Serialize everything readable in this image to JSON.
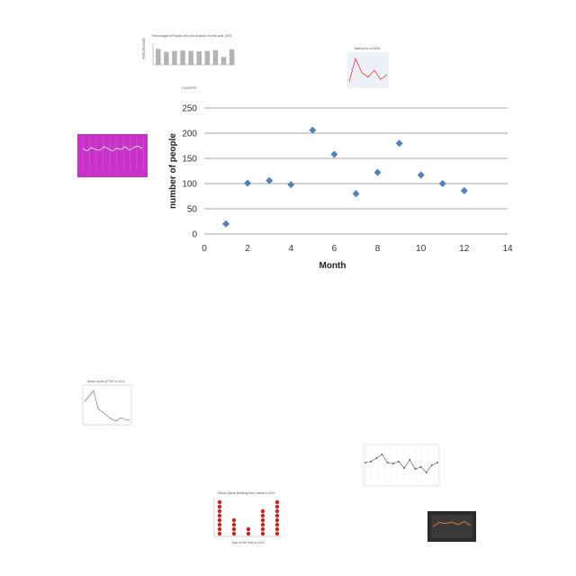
{
  "chart_data": {
    "type": "scatter",
    "title": "",
    "xlabel": "Month",
    "ylabel": "number of people",
    "xlim": [
      0,
      14
    ],
    "ylim": [
      0,
      250
    ],
    "x_ticks": [
      "0",
      "2",
      "4",
      "6",
      "8",
      "10",
      "12",
      "14"
    ],
    "y_ticks": [
      "0",
      "50",
      "100",
      "150",
      "200",
      "250"
    ],
    "grid": "horizontal",
    "marker": "diamond",
    "color": "#4f81bd",
    "points": [
      {
        "x": 1,
        "y": 20
      },
      {
        "x": 2,
        "y": 101
      },
      {
        "x": 3,
        "y": 106
      },
      {
        "x": 4,
        "y": 98
      },
      {
        "x": 5,
        "y": 206
      },
      {
        "x": 6,
        "y": 158
      },
      {
        "x": 7,
        "y": 80
      },
      {
        "x": 8,
        "y": 122
      },
      {
        "x": 9,
        "y": 180
      },
      {
        "x": 10,
        "y": 117
      },
      {
        "x": 11,
        "y": 100
      },
      {
        "x": 12,
        "y": 86
      }
    ]
  },
  "thumbnails": {
    "smokers": {
      "title": "Percentage of People who are smokers for the year 2002",
      "ylabel": "PERCENTAGE",
      "xlabel": "COUNTRY",
      "values": [
        80,
        65,
        70,
        72,
        70,
        68,
        70,
        74,
        40,
        78
      ]
    },
    "red_line": {
      "title": "Ideal price of 2005",
      "values": [
        10,
        60,
        30,
        20,
        35,
        15,
        25
      ]
    },
    "magenta_line": {
      "values": [
        55,
        48,
        58,
        52,
        50,
        60,
        54,
        48,
        56,
        52,
        60,
        50,
        58,
        62,
        55
      ]
    },
    "gray_line": {
      "title": "Mean Level of TNT in 2011",
      "values": [
        60,
        75,
        90,
        40,
        30,
        20,
        10,
        5,
        15,
        10,
        8
      ]
    },
    "dotted_line": {
      "values": [
        40,
        42,
        48,
        55,
        40,
        38,
        42,
        30,
        45,
        28,
        32,
        22,
        35,
        40
      ]
    },
    "red_dots": {
      "title": "Hours Spent Working from Home in 2021",
      "xlabel": "Day of the Year in 2021",
      "columns": [
        8,
        4,
        2,
        6,
        8
      ]
    },
    "dark_chart": {
      "values": [
        40,
        60,
        55,
        62,
        50,
        65,
        45
      ]
    }
  }
}
